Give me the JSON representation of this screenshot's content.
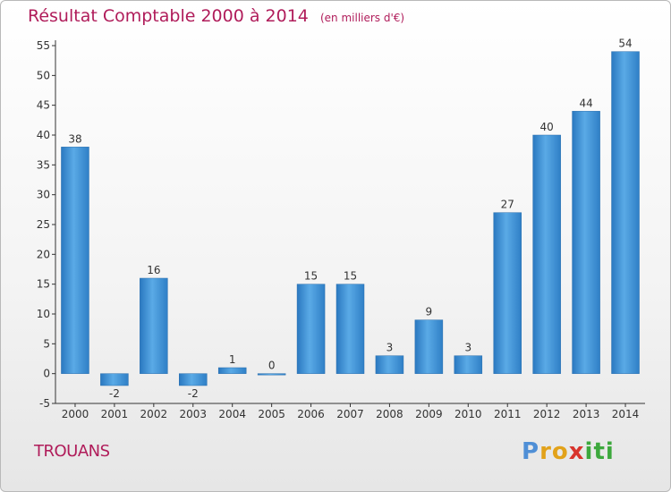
{
  "chart_data": {
    "type": "bar",
    "title": "Résultat Comptable 2000 à 2014",
    "subtitle": "(en milliers d'€)",
    "categories": [
      "2000",
      "2001",
      "2002",
      "2003",
      "2004",
      "2005",
      "2006",
      "2007",
      "2008",
      "2009",
      "2010",
      "2011",
      "2012",
      "2013",
      "2014"
    ],
    "values": [
      38,
      -2,
      16,
      -2,
      1,
      0,
      15,
      15,
      3,
      9,
      3,
      27,
      40,
      44,
      54
    ],
    "ylim": [
      -5,
      55
    ],
    "yticks": [
      -5,
      0,
      5,
      10,
      15,
      20,
      25,
      30,
      35,
      40,
      45,
      50,
      55
    ],
    "grid": false,
    "bar_color": "#3f93d6"
  },
  "commune": "TROUANS",
  "brand": {
    "letters": [
      "P",
      "r",
      "o",
      "x",
      "i",
      "t",
      "i"
    ],
    "colors": [
      "#4f8fd6",
      "#e2a21a",
      "#e2a21a",
      "#d8342c",
      "#3da83d",
      "#3da83d",
      "#3da83d"
    ]
  },
  "colors": {
    "accent": "#b01c5a"
  }
}
